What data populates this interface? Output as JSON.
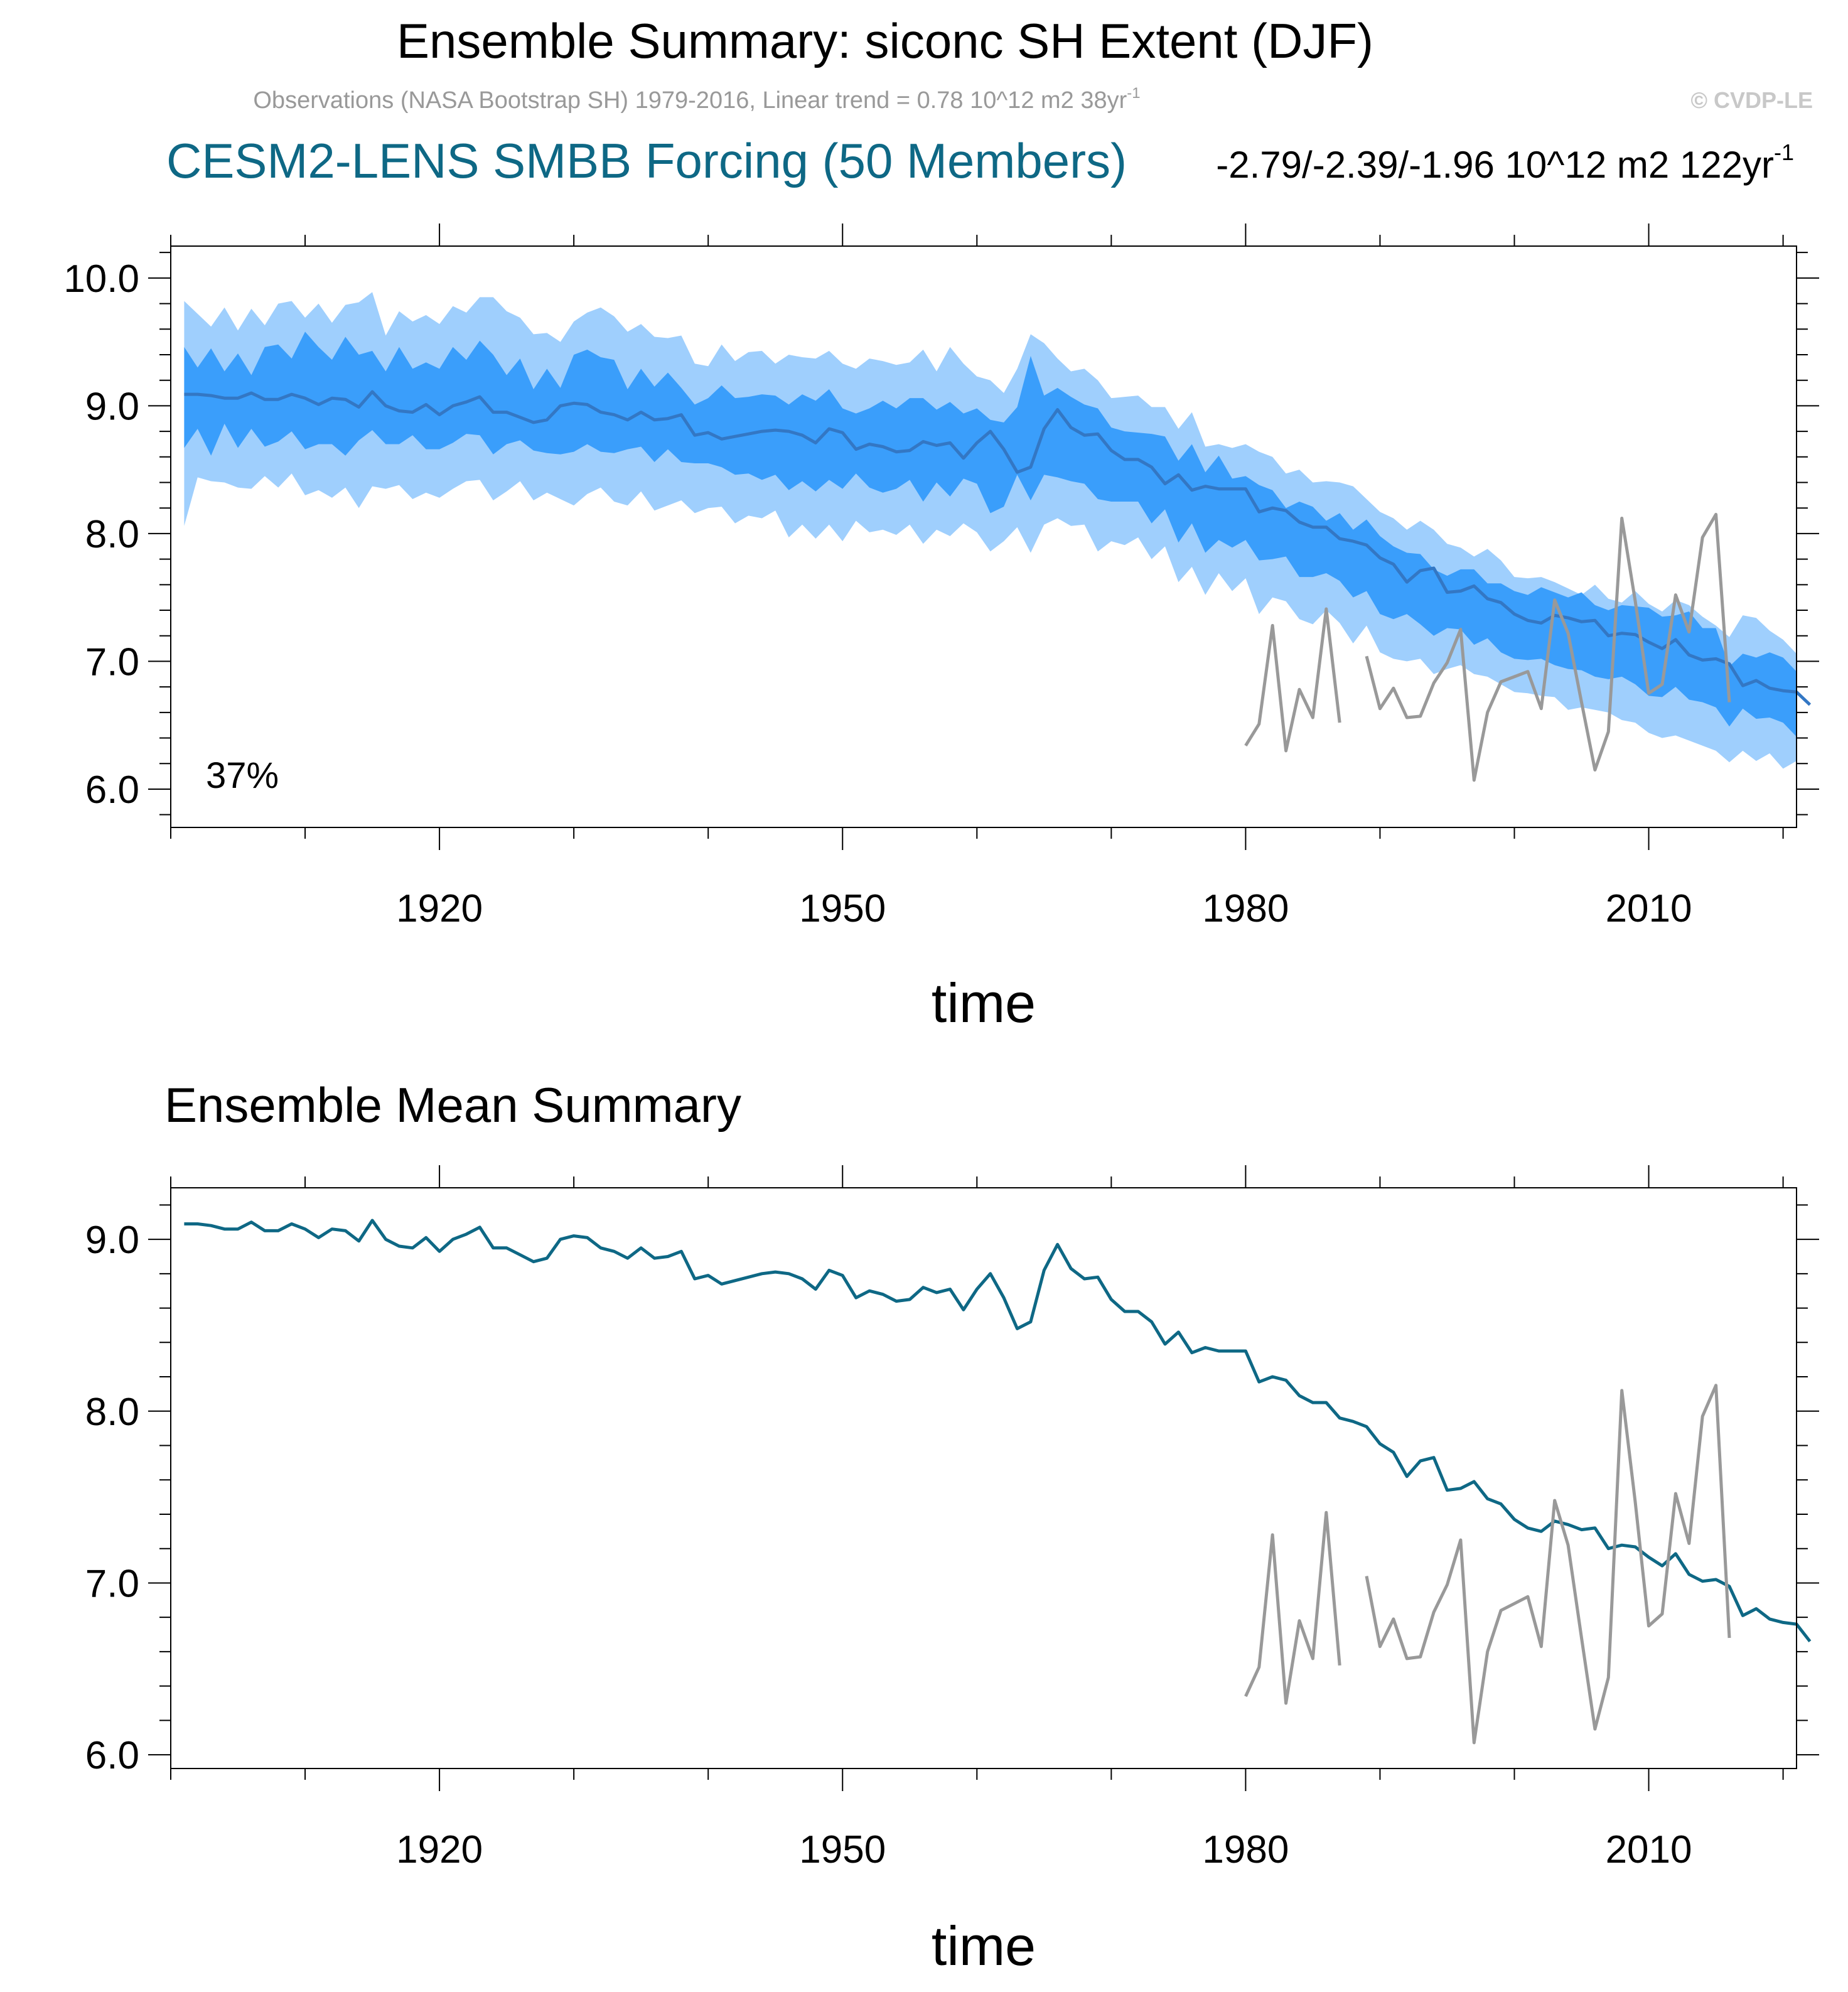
{
  "header": {
    "title": "Ensemble Summary: siconc SH Extent (DJF)",
    "obs_note": "Observations (NASA Bootstrap SH) 1979-2016, Linear trend = 0.78 10^12 m2 38yr",
    "obs_note_sup": "-1",
    "credit": "© CVDP-LE",
    "model_label": "CESM2-LENS SMBB Forcing (50 Members)",
    "model_trend": "-2.79/-2.39/-1.96 10^12 m2 122yr",
    "model_trend_sup": "-1"
  },
  "colors": {
    "band_outer": "#9FCFFD",
    "band_inner": "#3A9EFB",
    "ensemble_mean_top": "#3377C4",
    "ensemble_mean_bottom": "#0E6885",
    "observations": "#999999",
    "model_label": "#0E6885"
  },
  "chart_data": [
    {
      "type": "area",
      "title": "Ensemble Summary",
      "xlabel": "time",
      "ylabel": "",
      "xlim": [
        1900,
        2021
      ],
      "ylim": [
        5.7,
        10.25
      ],
      "xticks": [
        1920,
        1950,
        1980,
        2010
      ],
      "yticks": [
        "6.0",
        "7.0",
        "8.0",
        "9.0",
        "10.0"
      ],
      "annotation": "37%",
      "series": [
        {
          "name": "ensemble_min_max",
          "kind": "band",
          "x_start": 1901,
          "lower": [
            8.06,
            8.44,
            8.41,
            8.4,
            8.36,
            8.35,
            8.45,
            8.36,
            8.47,
            8.3,
            8.34,
            8.28,
            8.36,
            8.2,
            8.37,
            8.35,
            8.38,
            8.27,
            8.32,
            8.28,
            8.35,
            8.41,
            8.42,
            8.26,
            8.33,
            8.41,
            8.26,
            8.32,
            8.27,
            8.22,
            8.31,
            8.36,
            8.25,
            8.22,
            8.33,
            8.18,
            8.22,
            8.26,
            8.16,
            8.2,
            8.21,
            8.08,
            8.14,
            8.12,
            8.18,
            7.97,
            8.07,
            7.96,
            8.07,
            7.94,
            8.1,
            8.01,
            8.03,
            7.99,
            8.07,
            7.92,
            8.03,
            7.98,
            8.08,
            8.01,
            7.86,
            7.94,
            8.05,
            7.85,
            8.07,
            8.12,
            8.06,
            8.07,
            7.86,
            7.94,
            7.91,
            7.97,
            7.8,
            7.9,
            7.62,
            7.74,
            7.52,
            7.69,
            7.55,
            7.65,
            7.37,
            7.5,
            7.47,
            7.33,
            7.29,
            7.4,
            7.3,
            7.14,
            7.28,
            7.07,
            7.02,
            7.0,
            7.02,
            6.9,
            6.94,
            6.97,
            6.9,
            6.88,
            6.82,
            6.76,
            6.75,
            6.73,
            6.72,
            6.62,
            6.64,
            6.62,
            6.6,
            6.54,
            6.52,
            6.44,
            6.4,
            6.42,
            6.38,
            6.34,
            6.3,
            6.21,
            6.3,
            6.22,
            6.28,
            6.16,
            6.22
          ],
          "upper": [
            9.82,
            9.72,
            9.62,
            9.77,
            9.59,
            9.76,
            9.63,
            9.8,
            9.82,
            9.69,
            9.8,
            9.65,
            9.79,
            9.81,
            9.89,
            9.55,
            9.74,
            9.66,
            9.71,
            9.64,
            9.78,
            9.73,
            9.85,
            9.85,
            9.74,
            9.69,
            9.56,
            9.57,
            9.5,
            9.66,
            9.73,
            9.77,
            9.7,
            9.58,
            9.64,
            9.54,
            9.53,
            9.55,
            9.33,
            9.31,
            9.48,
            9.35,
            9.42,
            9.43,
            9.33,
            9.4,
            9.38,
            9.37,
            9.43,
            9.33,
            9.29,
            9.37,
            9.35,
            9.32,
            9.34,
            9.44,
            9.27,
            9.46,
            9.33,
            9.23,
            9.2,
            9.1,
            9.29,
            9.56,
            9.49,
            9.37,
            9.27,
            9.29,
            9.2,
            9.06,
            9.07,
            9.08,
            8.99,
            8.99,
            8.82,
            8.95,
            8.68,
            8.7,
            8.67,
            8.7,
            8.64,
            8.6,
            8.47,
            8.5,
            8.4,
            8.41,
            8.4,
            8.37,
            8.27,
            8.17,
            8.12,
            8.03,
            8.1,
            8.03,
            7.92,
            7.89,
            7.82,
            7.88,
            7.79,
            7.66,
            7.65,
            7.66,
            7.62,
            7.57,
            7.52,
            7.6,
            7.49,
            7.46,
            7.55,
            7.45,
            7.39,
            7.48,
            7.44,
            7.35,
            7.28,
            7.19,
            7.36,
            7.34,
            7.24,
            7.17,
            7.06
          ]
        },
        {
          "name": "ensemble_10_90_percentile",
          "kind": "band",
          "x_start": 1901,
          "lower": [
            8.67,
            8.82,
            8.61,
            8.86,
            8.67,
            8.82,
            8.68,
            8.72,
            8.8,
            8.66,
            8.7,
            8.7,
            8.61,
            8.73,
            8.81,
            8.7,
            8.7,
            8.77,
            8.66,
            8.66,
            8.71,
            8.78,
            8.77,
            8.62,
            8.7,
            8.73,
            8.65,
            8.63,
            8.62,
            8.64,
            8.7,
            8.64,
            8.63,
            8.66,
            8.68,
            8.56,
            8.66,
            8.56,
            8.55,
            8.55,
            8.52,
            8.46,
            8.47,
            8.42,
            8.46,
            8.34,
            8.41,
            8.33,
            8.42,
            8.35,
            8.47,
            8.36,
            8.32,
            8.35,
            8.42,
            8.25,
            8.4,
            8.29,
            8.43,
            8.39,
            8.16,
            8.21,
            8.46,
            8.26,
            8.46,
            8.44,
            8.41,
            8.39,
            8.27,
            8.25,
            8.25,
            8.25,
            8.08,
            8.19,
            7.93,
            8.08,
            7.85,
            7.95,
            7.89,
            7.95,
            7.79,
            7.8,
            7.82,
            7.66,
            7.66,
            7.69,
            7.63,
            7.5,
            7.55,
            7.37,
            7.33,
            7.37,
            7.29,
            7.2,
            7.26,
            7.25,
            7.13,
            7.18,
            7.07,
            7.02,
            7.01,
            7.02,
            6.97,
            6.94,
            6.93,
            6.88,
            6.86,
            6.88,
            6.82,
            6.73,
            6.72,
            6.8,
            6.7,
            6.68,
            6.64,
            6.49,
            6.63,
            6.55,
            6.56,
            6.52,
            6.41
          ]
        },
        {
          "name": "ensemble_10_90_percentile_upper",
          "kind": "band_upper",
          "x_start": 1901,
          "upper": [
            9.46,
            9.3,
            9.45,
            9.27,
            9.41,
            9.24,
            9.46,
            9.48,
            9.37,
            9.58,
            9.46,
            9.36,
            9.54,
            9.4,
            9.43,
            9.27,
            9.46,
            9.29,
            9.34,
            9.29,
            9.46,
            9.36,
            9.51,
            9.4,
            9.24,
            9.37,
            9.13,
            9.29,
            9.14,
            9.4,
            9.44,
            9.38,
            9.36,
            9.13,
            9.29,
            9.15,
            9.26,
            9.14,
            9.01,
            9.06,
            9.16,
            9.06,
            9.07,
            9.09,
            9.08,
            9.01,
            9.09,
            9.04,
            9.13,
            8.98,
            8.94,
            8.98,
            9.04,
            8.98,
            9.06,
            9.06,
            8.97,
            9.03,
            8.94,
            8.98,
            8.89,
            8.87,
            8.99,
            9.39,
            9.08,
            9.14,
            9.07,
            9.01,
            8.98,
            8.83,
            8.8,
            8.79,
            8.78,
            8.76,
            8.57,
            8.7,
            8.48,
            8.61,
            8.43,
            8.45,
            8.38,
            8.34,
            8.2,
            8.25,
            8.21,
            8.1,
            8.16,
            8.03,
            8.11,
            7.98,
            7.9,
            7.85,
            7.84,
            7.72,
            7.67,
            7.72,
            7.72,
            7.61,
            7.61,
            7.55,
            7.52,
            7.58,
            7.54,
            7.5,
            7.54,
            7.44,
            7.4,
            7.44,
            7.43,
            7.42,
            7.35,
            7.36,
            7.39,
            7.26,
            7.26,
            6.96,
            7.06,
            7.03,
            7.07,
            7.03,
            6.92
          ]
        },
        {
          "name": "Ensemble Mean",
          "kind": "line",
          "x_start": 1901,
          "values": [
            9.09,
            9.09,
            9.08,
            9.06,
            9.06,
            9.1,
            9.05,
            9.05,
            9.09,
            9.06,
            9.01,
            9.06,
            9.05,
            8.99,
            9.11,
            9.0,
            8.96,
            8.95,
            9.01,
            8.93,
            9.0,
            9.03,
            9.07,
            8.95,
            8.95,
            8.91,
            8.87,
            8.89,
            9.0,
            9.02,
            9.01,
            8.95,
            8.93,
            8.89,
            8.95,
            8.89,
            8.9,
            8.93,
            8.77,
            8.79,
            8.74,
            8.76,
            8.78,
            8.8,
            8.81,
            8.8,
            8.77,
            8.71,
            8.82,
            8.79,
            8.66,
            8.7,
            8.68,
            8.64,
            8.65,
            8.72,
            8.69,
            8.71,
            8.59,
            8.71,
            8.8,
            8.66,
            8.48,
            8.52,
            8.82,
            8.97,
            8.83,
            8.77,
            8.78,
            8.65,
            8.58,
            8.58,
            8.52,
            8.39,
            8.46,
            8.34,
            8.37,
            8.35,
            8.35,
            8.35,
            8.17,
            8.2,
            8.18,
            8.09,
            8.05,
            8.05,
            7.96,
            7.94,
            7.91,
            7.81,
            7.76,
            7.62,
            7.71,
            7.73,
            7.54,
            7.55,
            7.59,
            7.49,
            7.46,
            7.37,
            7.32,
            7.3,
            7.36,
            7.34,
            7.31,
            7.32,
            7.2,
            7.22,
            7.21,
            7.15,
            7.1,
            7.17,
            7.05,
            7.01,
            7.02,
            6.98,
            6.81,
            6.85,
            6.79,
            6.77,
            6.76,
            6.66
          ]
        },
        {
          "name": "Observations (NASA Bootstrap SH)",
          "kind": "line",
          "x": [
            1980,
            1981,
            1982,
            1983,
            1984,
            1985,
            1986,
            1987,
            1988,
            1989,
            1990,
            1991,
            1992,
            1993,
            1994,
            1995,
            1996,
            1997,
            1998,
            1999,
            2000,
            2001,
            2002,
            2003,
            2004,
            2005,
            2006,
            2007,
            2008,
            2009,
            2010,
            2011,
            2012,
            2013,
            2014,
            2015,
            2016
          ],
          "values": [
            6.34,
            6.51,
            7.28,
            6.3,
            6.78,
            6.56,
            7.41,
            6.52,
            null,
            7.04,
            6.63,
            6.79,
            6.56,
            6.57,
            6.83,
            6.99,
            7.25,
            6.07,
            6.6,
            6.84,
            6.88,
            6.92,
            6.63,
            7.48,
            7.22,
            6.68,
            6.15,
            6.45,
            8.12,
            7.47,
            6.75,
            6.82,
            7.52,
            7.23,
            7.97,
            8.15,
            6.68
          ]
        }
      ]
    },
    {
      "type": "line",
      "title": "Ensemble Mean Summary",
      "xlabel": "time",
      "ylabel": "",
      "xlim": [
        1900,
        2021
      ],
      "ylim": [
        5.92,
        9.3
      ],
      "xticks": [
        1920,
        1950,
        1980,
        2010
      ],
      "yticks": [
        "6.0",
        "7.0",
        "8.0",
        "9.0"
      ],
      "series": [
        {
          "name": "Ensemble Mean",
          "ref": "chart_data.0.series.3"
        },
        {
          "name": "Observations (NASA Bootstrap SH)",
          "ref": "chart_data.0.series.4"
        }
      ]
    }
  ]
}
